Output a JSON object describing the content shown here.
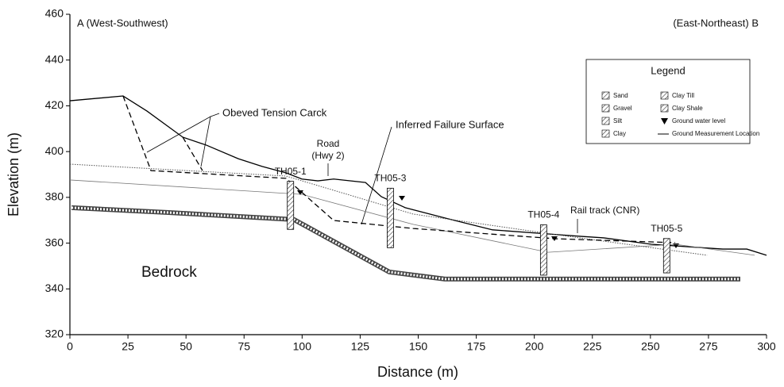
{
  "chart_data": {
    "type": "line",
    "xlabel": "Distance (m)",
    "ylabel": "Elevation (m)",
    "xlim": [
      0,
      300
    ],
    "ylim": [
      320,
      460
    ],
    "xticks": [
      0,
      25,
      50,
      75,
      100,
      125,
      150,
      175,
      200,
      225,
      250,
      275,
      300
    ],
    "yticks": [
      320,
      340,
      360,
      380,
      400,
      420,
      440,
      460
    ],
    "annotations": {
      "left_end": "A (West-Southwest)",
      "right_end": "(East-Northeast) B",
      "tension_crack": "Obeved Tension Carck",
      "failure_surface": "Inferred Failure Surface",
      "road": "Road",
      "road_sub": "(Hwy 2)",
      "rail": "Rail track (CNR)",
      "bedrock": "Bedrock"
    },
    "legend": {
      "title": "Legend",
      "items": [
        "Sand",
        "Gravel",
        "Silt",
        "Clay",
        "Clay Till",
        "Clay Shale",
        "Ground water level",
        "Ground Measurement Location"
      ]
    },
    "series": [
      {
        "color": "#000000",
        "style": "solid",
        "width": 1.3,
        "x": [
          0,
          22.9,
          33.2,
          48.6,
          58.8,
          72.5,
          82.8,
          93.1,
          99.9,
          106.8,
          113.6,
          127.3,
          134.1,
          144.4,
          161.5,
          182.0,
          205.9,
          219.6,
          229.9,
          250.4,
          270.9,
          281.2,
          291.5,
          300
        ],
        "values": [
          422.2,
          424.3,
          417.7,
          406.3,
          402.8,
          396.9,
          393.5,
          390.7,
          388.0,
          387.2,
          388.0,
          386.5,
          380.3,
          375.5,
          371.0,
          365.8,
          364.0,
          363.0,
          362.3,
          359.5,
          358.1,
          357.4,
          357.4,
          354.7
        ]
      },
      {
        "color": "#555555",
        "style": "dotted",
        "width": 1,
        "x": [
          0,
          93.1,
          147.8,
          209.4,
          274.4
        ],
        "values": [
          394.5,
          389.3,
          372.7,
          363.7,
          354.7
        ]
      },
      {
        "color": "#777777",
        "style": "solid",
        "width": 0.8,
        "x": [
          0,
          99.9,
          147.8,
          205.9,
          260.7,
          294.9
        ],
        "values": [
          387.6,
          381.3,
          368.2,
          356.0,
          359.5,
          354.7
        ]
      },
      {
        "color": "#000000",
        "style": "dashed",
        "width": 1.3,
        "x": [
          22.9,
          34.9,
          93.1,
          113.6,
          147.8,
          209.4,
          260.7
        ],
        "values": [
          424.3,
          391.7,
          388.3,
          369.9,
          366.4,
          361.9,
          360.2
        ]
      },
      {
        "color": "#000000",
        "style": "dashed",
        "width": 1.3,
        "x": [
          48.6,
          57.1
        ],
        "values": [
          406.3,
          391.7
        ]
      },
      {
        "color": "#444444",
        "style": "bedrock",
        "width": 6,
        "x": [
          0.7,
          41.7,
          96.5,
          137.5,
          161.5,
          288.7
        ],
        "values": [
          375.5,
          373.4,
          370.3,
          347.4,
          344.3,
          344.3
        ]
      }
    ],
    "boreholes": [
      {
        "label": "TH05-1",
        "x": 95,
        "top": 387,
        "bottom": 366
      },
      {
        "label": "TH05-3",
        "x": 138,
        "top": 384,
        "bottom": 358
      },
      {
        "label": "TH05-4",
        "x": 204,
        "top": 368,
        "bottom": 346
      },
      {
        "label": "TH05-5",
        "x": 257,
        "top": 362,
        "bottom": 347
      }
    ]
  }
}
